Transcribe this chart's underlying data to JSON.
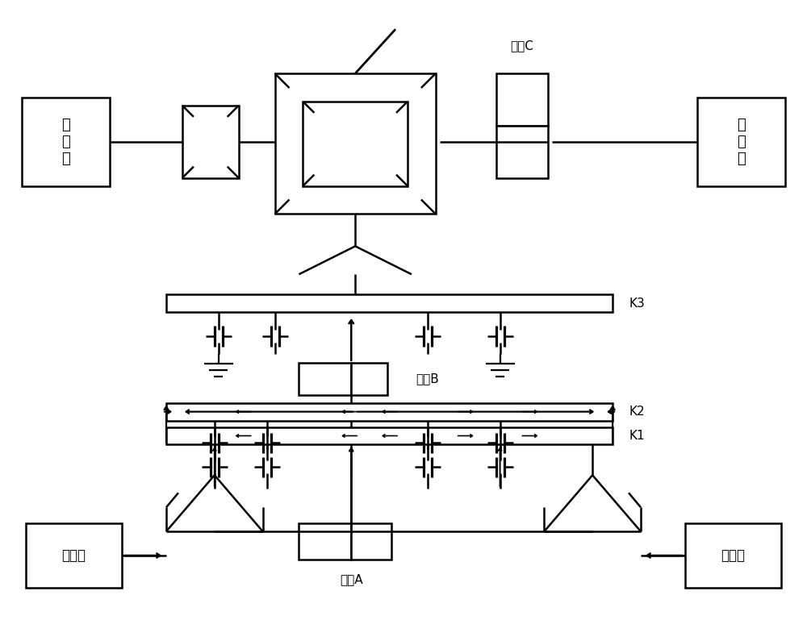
{
  "bg_color": "#ffffff",
  "fig_width": 10.0,
  "fig_height": 7.95,
  "labels": {
    "qian_han_dao": "前\n函\n道",
    "hou_han_dao": "后\n函\n道",
    "fa_dong_ji": "发动机",
    "dian_ji_A": "电机A",
    "dian_ji_B": "电机B",
    "dian_ji_C": "电机C",
    "K1": "K1",
    "K2": "K2",
    "K3": "K3"
  }
}
